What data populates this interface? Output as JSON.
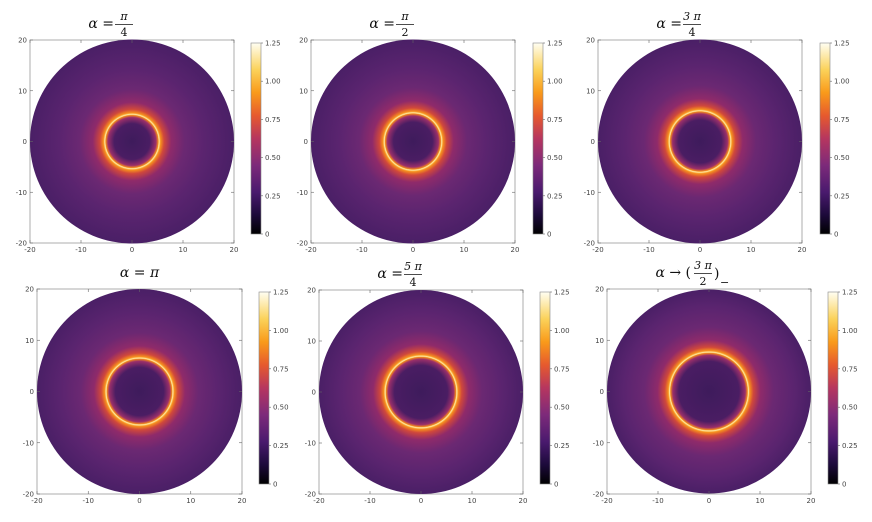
{
  "chart_data": [
    {
      "type": "heatmap",
      "title": {
        "lhs": "α",
        "op": "=",
        "num": "π",
        "den": "4",
        "paren": false
      },
      "x_ticks": [
        -20,
        -10,
        0,
        10,
        20
      ],
      "y_ticks": [
        20,
        10,
        0,
        -10,
        -20
      ],
      "xlim": [
        -20,
        20
      ],
      "ylim": [
        -20,
        20
      ],
      "outer_radius": 20,
      "ring_radius": 5.3,
      "colorbar": {
        "min": 0,
        "max": 1.25,
        "ticks": [
          "1.25",
          "1.00",
          "0.75",
          "0.50",
          "0.25",
          "0"
        ]
      }
    },
    {
      "type": "heatmap",
      "title": {
        "lhs": "α",
        "op": "=",
        "num": "π",
        "den": "2",
        "paren": false
      },
      "x_ticks": [
        -20,
        -10,
        0,
        10,
        20
      ],
      "y_ticks": [
        20,
        10,
        0,
        -10,
        -20
      ],
      "xlim": [
        -20,
        20
      ],
      "ylim": [
        -20,
        20
      ],
      "outer_radius": 20,
      "ring_radius": 5.6,
      "colorbar": {
        "min": 0,
        "max": 1.25,
        "ticks": [
          "1.25",
          "1.00",
          "0.75",
          "0.50",
          "0.25",
          "0"
        ]
      }
    },
    {
      "type": "heatmap",
      "title": {
        "lhs": "α",
        "op": "=",
        "num": "3 π",
        "den": "4",
        "paren": false
      },
      "x_ticks": [
        -20,
        -10,
        0,
        10,
        20
      ],
      "y_ticks": [
        20,
        10,
        0,
        -10,
        -20
      ],
      "xlim": [
        -20,
        20
      ],
      "ylim": [
        -20,
        20
      ],
      "outer_radius": 20,
      "ring_radius": 6.0,
      "colorbar": {
        "min": 0,
        "max": 1.25,
        "ticks": [
          "1.25",
          "1.00",
          "0.75",
          "0.50",
          "0.25",
          "0"
        ]
      }
    },
    {
      "type": "heatmap",
      "title": {
        "lhs": "α",
        "op": "=",
        "num": "",
        "den": "",
        "tail": "π",
        "paren": false
      },
      "x_ticks": [
        -20,
        -10,
        0,
        10,
        20
      ],
      "y_ticks": [
        20,
        10,
        0,
        -10,
        -20
      ],
      "xlim": [
        -20,
        20
      ],
      "ylim": [
        -20,
        20
      ],
      "outer_radius": 20,
      "ring_radius": 6.5,
      "colorbar": {
        "min": 0,
        "max": 1.25,
        "ticks": [
          "1.25",
          "1.00",
          "0.75",
          "0.50",
          "0.25",
          "0"
        ]
      }
    },
    {
      "type": "heatmap",
      "title": {
        "lhs": "α",
        "op": "=",
        "num": "5 π",
        "den": "4",
        "paren": false
      },
      "x_ticks": [
        -20,
        -10,
        0,
        10,
        20
      ],
      "y_ticks": [
        20,
        10,
        0,
        -10,
        -20
      ],
      "xlim": [
        -20,
        20
      ],
      "ylim": [
        -20,
        20
      ],
      "outer_radius": 20,
      "ring_radius": 7.0,
      "colorbar": {
        "min": 0,
        "max": 1.25,
        "ticks": [
          "1.25",
          "1.00",
          "0.75",
          "0.50",
          "0.25",
          "0"
        ]
      }
    },
    {
      "type": "heatmap",
      "title": {
        "lhs": "α",
        "op": "→",
        "num": "3 π",
        "den": "2",
        "paren": true,
        "sub": "−"
      },
      "x_ticks": [
        -20,
        -10,
        0,
        10,
        20
      ],
      "y_ticks": [
        20,
        10,
        0,
        -10,
        -20
      ],
      "xlim": [
        -20,
        20
      ],
      "ylim": [
        -20,
        20
      ],
      "outer_radius": 20,
      "ring_radius": 7.7,
      "colorbar": {
        "min": 0,
        "max": 1.25,
        "ticks": [
          "1.25",
          "1.00",
          "0.75",
          "0.50",
          "0.25",
          "0"
        ]
      }
    }
  ]
}
